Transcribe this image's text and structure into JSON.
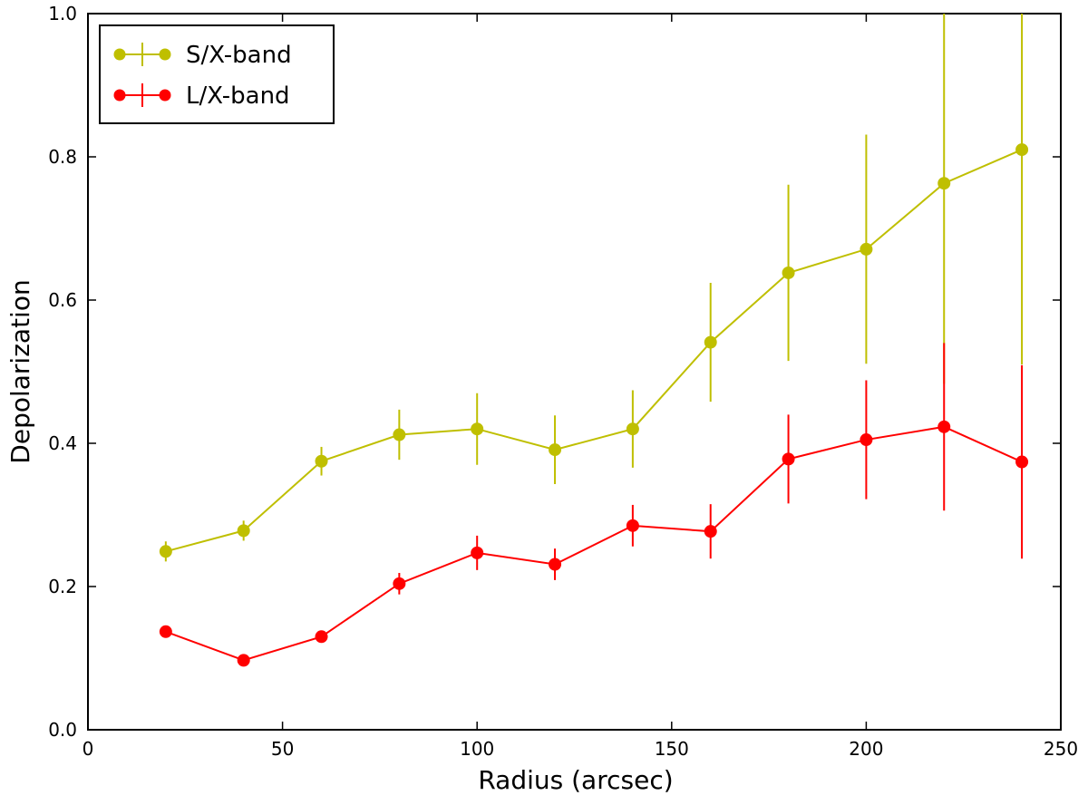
{
  "chart_data": {
    "type": "line",
    "title": "",
    "xlabel": "Radius (arcsec)",
    "ylabel": "Depolarization",
    "xlim": [
      0,
      250
    ],
    "ylim": [
      0.0,
      1.0
    ],
    "xticks": [
      0,
      50,
      100,
      150,
      200,
      250
    ],
    "xtick_labels": [
      "0",
      "50",
      "100",
      "150",
      "200",
      "250"
    ],
    "yticks": [
      0.0,
      0.2,
      0.4,
      0.6,
      0.8,
      1.0
    ],
    "ytick_labels": [
      "0.0",
      "0.2",
      "0.4",
      "0.6",
      "0.8",
      "1.0"
    ],
    "grid": false,
    "legend_position": "top-left",
    "series": [
      {
        "name": "S/X-band",
        "color": "#bfbf00",
        "x": [
          20,
          40,
          60,
          80,
          100,
          120,
          140,
          160,
          180,
          200,
          220,
          240
        ],
        "y": [
          0.249,
          0.278,
          0.375,
          0.412,
          0.42,
          0.391,
          0.42,
          0.541,
          0.638,
          0.671,
          0.763,
          0.81
        ],
        "err": [
          0.014,
          0.014,
          0.02,
          0.035,
          0.05,
          0.048,
          0.054,
          0.083,
          0.123,
          0.16,
          0.28,
          0.3
        ]
      },
      {
        "name": "L/X-band",
        "color": "#ff0000",
        "x": [
          20,
          40,
          60,
          80,
          100,
          120,
          140,
          160,
          180,
          200,
          220,
          240
        ],
        "y": [
          0.137,
          0.097,
          0.13,
          0.204,
          0.247,
          0.231,
          0.285,
          0.277,
          0.378,
          0.405,
          0.423,
          0.374
        ],
        "err": [
          0.005,
          0.005,
          0.006,
          0.015,
          0.024,
          0.022,
          0.029,
          0.038,
          0.062,
          0.083,
          0.117,
          0.135
        ]
      }
    ]
  }
}
